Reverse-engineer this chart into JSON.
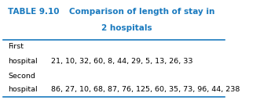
{
  "title_prefix": "TABLE 9.10",
  "title_main": "Comparison of length of stay in",
  "title_sub": "2 hospitals",
  "header_color": "#1a7abf",
  "line_color": "#1a7abf",
  "row1_label1": "First",
  "row1_label2": "hospital",
  "row1_data": "21, 10, 32, 60, 8, 44, 29, 5, 13, 26, 33",
  "row2_label1": "Second",
  "row2_label2": "hospital",
  "row2_data": "86, 27, 10, 68, 87, 76, 125, 60, 35, 73, 96, 44, 238",
  "bg_color": "#ffffff",
  "text_color": "#000000",
  "figsize": [
    3.31,
    1.28
  ],
  "dpi": 100
}
